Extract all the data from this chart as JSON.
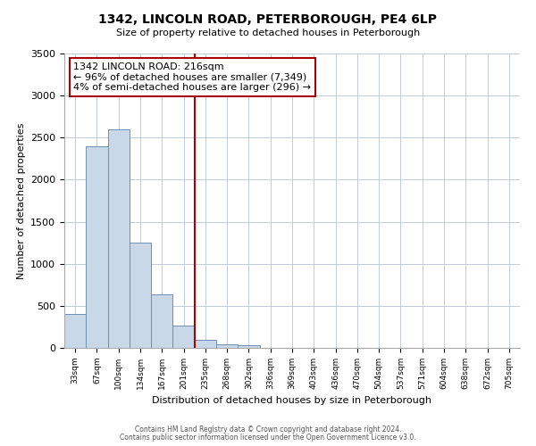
{
  "title": "1342, LINCOLN ROAD, PETERBOROUGH, PE4 6LP",
  "subtitle": "Size of property relative to detached houses in Peterborough",
  "xlabel": "Distribution of detached houses by size in Peterborough",
  "ylabel": "Number of detached properties",
  "footnote1": "Contains HM Land Registry data © Crown copyright and database right 2024.",
  "footnote2": "Contains public sector information licensed under the Open Government Licence v3.0.",
  "bin_labels": [
    "33sqm",
    "67sqm",
    "100sqm",
    "134sqm",
    "167sqm",
    "201sqm",
    "235sqm",
    "268sqm",
    "302sqm",
    "336sqm",
    "369sqm",
    "403sqm",
    "436sqm",
    "470sqm",
    "504sqm",
    "537sqm",
    "571sqm",
    "604sqm",
    "638sqm",
    "672sqm",
    "705sqm"
  ],
  "bar_heights": [
    400,
    2400,
    2600,
    1250,
    640,
    270,
    100,
    45,
    30,
    0,
    0,
    0,
    0,
    0,
    0,
    0,
    0,
    0,
    0,
    0,
    0
  ],
  "bar_color": "#c8d8e8",
  "bar_edge_color": "#7090b0",
  "vline_x": 5.5,
  "vline_color": "#aa0000",
  "annotation_title": "1342 LINCOLN ROAD: 216sqm",
  "annotation_line1": "← 96% of detached houses are smaller (7,349)",
  "annotation_line2": "4% of semi-detached houses are larger (296) →",
  "annotation_box_color": "#aa0000",
  "ylim": [
    0,
    3500
  ],
  "background_color": "#ffffff",
  "grid_color": "#c0ccd8"
}
